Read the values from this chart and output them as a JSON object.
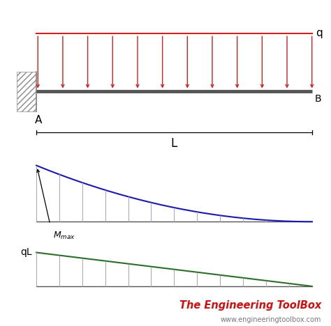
{
  "bg_color": "#ffffff",
  "beam_color": "#555555",
  "load_color": "#cc2222",
  "hatch_color": "#888888",
  "bending_color": "#1a1aaa",
  "shear_color": "#2a6e2a",
  "vline_color": "#9999bb",
  "label_A": "A",
  "label_B": "B",
  "label_L": "L",
  "label_q": "q",
  "label_qL": "qL",
  "brand_text": "The Engineering ToolBox",
  "brand_url": "www.engineeringtoolbox.com",
  "brand_color": "#cc1111",
  "url_color": "#777777",
  "n_load_arrows": 12,
  "n_vert_lines": 12
}
